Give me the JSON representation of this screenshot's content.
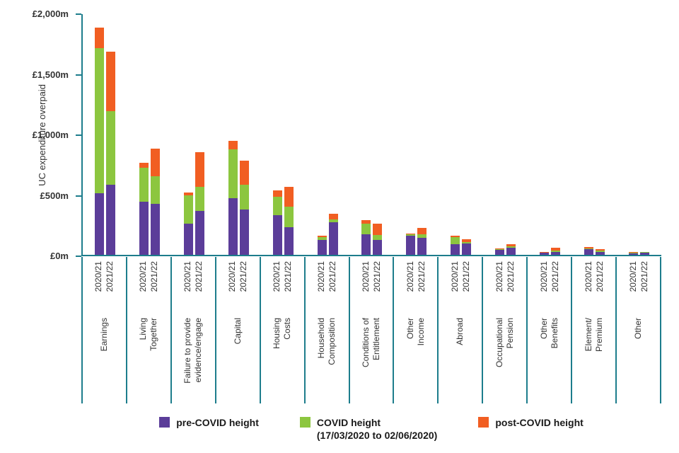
{
  "chart_data": {
    "type": "bar",
    "stacked": true,
    "title": "",
    "ylabel": "UC expenditure overpaid",
    "ylim": [
      0,
      2000
    ],
    "grid": false,
    "legend_position": "bottom",
    "y_ticks": [
      {
        "label": "£2,000m",
        "value": 2000
      },
      {
        "label": "£1,500m",
        "value": 1500
      },
      {
        "label": "£1,000m",
        "value": 1000
      },
      {
        "label": "£500m",
        "value": 500
      },
      {
        "label": "£0m",
        "value": 0
      }
    ],
    "x_sub_labels": [
      "2020/21",
      "2021/22"
    ],
    "series": [
      {
        "name": "pre-COVID height",
        "color": "#5b3d99"
      },
      {
        "name": "COVID height (17/03/2020 to 02/06/2020)",
        "color": "#8cc63f"
      },
      {
        "name": "post-COVID height",
        "color": "#f15e22"
      }
    ],
    "categories": [
      {
        "label": "Earnings",
        "lines": [
          "Earnings"
        ]
      },
      {
        "label": "Living Together",
        "lines": [
          "Living",
          "Together"
        ]
      },
      {
        "label": "Failure to provide evidence/engage",
        "lines": [
          "Failure to provide",
          "evidence/engage"
        ]
      },
      {
        "label": "Capital",
        "lines": [
          "Capital"
        ]
      },
      {
        "label": "Housing Costs",
        "lines": [
          "Housing",
          "Costs"
        ]
      },
      {
        "label": "Household Composition",
        "lines": [
          "Household",
          "Composition"
        ]
      },
      {
        "label": "Conditions of Entitlement",
        "lines": [
          "Conditions of",
          "Entitlement"
        ]
      },
      {
        "label": "Other Income",
        "lines": [
          "Other",
          "Income"
        ]
      },
      {
        "label": "Abroad",
        "lines": [
          "Abroad"
        ]
      },
      {
        "label": "Occupational Pension",
        "lines": [
          "Occupational",
          "Pension"
        ]
      },
      {
        "label": "Other Benefits",
        "lines": [
          "Other",
          "Benefits"
        ]
      },
      {
        "label": "Element/ Premium",
        "lines": [
          "Element/",
          "Premium"
        ]
      },
      {
        "label": "Other",
        "lines": [
          "Other"
        ]
      }
    ],
    "values_m_pre_covid_post": [
      [
        [
          510,
          1200,
          170
        ],
        [
          580,
          610,
          490
        ]
      ],
      [
        [
          440,
          280,
          40
        ],
        [
          420,
          230,
          230
        ]
      ],
      [
        [
          260,
          230,
          25
        ],
        [
          360,
          200,
          290
        ]
      ],
      [
        [
          470,
          400,
          70
        ],
        [
          375,
          205,
          195
        ]
      ],
      [
        [
          330,
          150,
          50
        ],
        [
          230,
          170,
          160
        ]
      ],
      [
        [
          120,
          25,
          15
        ],
        [
          270,
          25,
          45
        ]
      ],
      [
        [
          170,
          90,
          25
        ],
        [
          120,
          45,
          95
        ]
      ],
      [
        [
          160,
          10,
          5
        ],
        [
          140,
          30,
          50
        ]
      ],
      [
        [
          90,
          55,
          15
        ],
        [
          95,
          10,
          25
        ]
      ],
      [
        [
          40,
          8,
          7
        ],
        [
          60,
          10,
          15
        ]
      ],
      [
        [
          15,
          5,
          5
        ],
        [
          25,
          10,
          25
        ]
      ],
      [
        [
          45,
          10,
          10
        ],
        [
          25,
          8,
          15
        ]
      ],
      [
        [
          12,
          5,
          5
        ],
        [
          18,
          4,
          4
        ]
      ]
    ]
  },
  "legend": {
    "items": [
      {
        "label": "pre-COVID height",
        "sublabel": "",
        "color": "#5b3d99"
      },
      {
        "label": "COVID height",
        "sublabel": "(17/03/2020 to 02/06/2020)",
        "color": "#8cc63f"
      },
      {
        "label": "post-COVID height",
        "sublabel": "",
        "color": "#f15e22"
      }
    ]
  },
  "colors": {
    "axis_teal": "#1d7d8c",
    "text": "#333333",
    "purple": "#5b3d99",
    "green": "#8cc63f",
    "orange": "#f15e22"
  }
}
